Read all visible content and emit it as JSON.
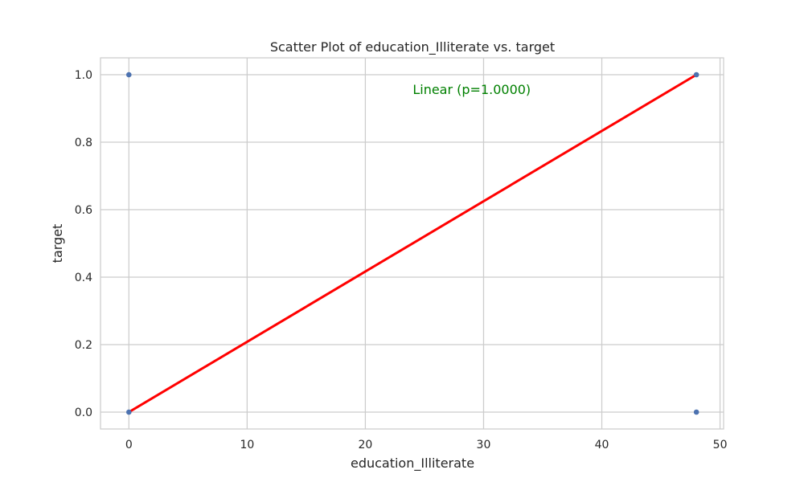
{
  "chart_data": {
    "type": "scatter",
    "title": "Scatter Plot of education_Illiterate vs. target",
    "xlabel": "education_Illiterate",
    "ylabel": "target",
    "xlim": [
      -2.4,
      50.3
    ],
    "ylim": [
      -0.05,
      1.05
    ],
    "x_ticks": [
      0,
      10,
      20,
      30,
      40,
      50
    ],
    "x_tick_labels": [
      "0",
      "10",
      "20",
      "30",
      "40",
      "50"
    ],
    "y_ticks": [
      0.0,
      0.2,
      0.4,
      0.6,
      0.8,
      1.0
    ],
    "y_tick_labels": [
      "0.0",
      "0.2",
      "0.4",
      "0.6",
      "0.8",
      "1.0"
    ],
    "grid": true,
    "points": [
      {
        "x": 0,
        "y": 1.0
      },
      {
        "x": 0,
        "y": 0.0
      },
      {
        "x": 48,
        "y": 1.0
      },
      {
        "x": 48,
        "y": 0.0
      }
    ],
    "fit_line": {
      "x": [
        0,
        48
      ],
      "y": [
        0.0,
        1.0
      ]
    },
    "annotation": {
      "text": "Linear (p=1.0000)",
      "x": 29,
      "y": 0.955
    },
    "colors": {
      "points": "#4c72b0",
      "fit_line": "#ff0000",
      "annotation": "#008000",
      "grid": "#cccccc",
      "frame": "#cccccc"
    }
  }
}
